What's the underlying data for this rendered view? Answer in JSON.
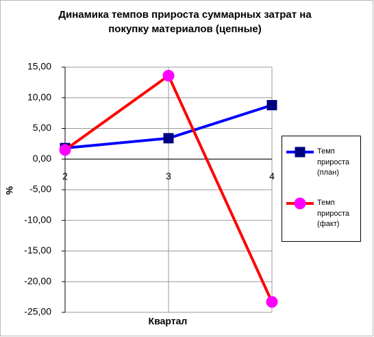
{
  "chart_data": {
    "type": "line",
    "title": "Динамика темпов прироста суммарных затрат на покупку материалов (цепные)",
    "x_label": "Квартал",
    "y_label": "%",
    "categories": [
      "2",
      "3",
      "4"
    ],
    "series": [
      {
        "name": "Темп прироста (план)",
        "color": "#0000ff",
        "marker_color": "#000080",
        "marker": "square",
        "values": [
          1.8,
          3.4,
          8.8
        ]
      },
      {
        "name": "Темп прироста (факт)",
        "color": "#ff0000",
        "marker_color": "#ff00ff",
        "marker": "circle",
        "values": [
          1.5,
          13.6,
          -23.3
        ]
      }
    ],
    "ylim": [
      -25,
      15
    ],
    "yticks": [
      {
        "value": -25,
        "label": "-25,00"
      },
      {
        "value": -20,
        "label": "-20,00"
      },
      {
        "value": -15,
        "label": "-15,00"
      },
      {
        "value": -10,
        "label": "-10,00"
      },
      {
        "value": -5,
        "label": "-5,00"
      },
      {
        "value": 0,
        "label": "0,00"
      },
      {
        "value": 5,
        "label": "5,00"
      },
      {
        "value": 10,
        "label": "10,00"
      },
      {
        "value": 15,
        "label": "15,00"
      }
    ],
    "negative_tick_color": "#ff0000",
    "grid": true,
    "legend": "right"
  }
}
